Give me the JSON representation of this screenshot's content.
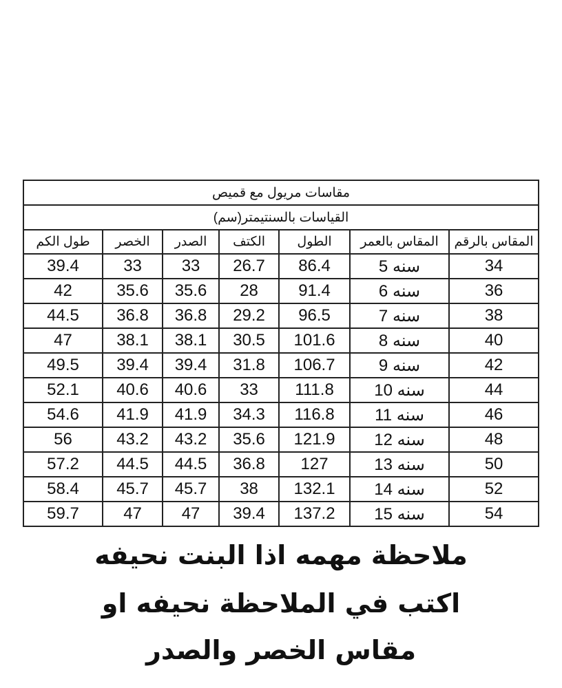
{
  "table": {
    "title": "مقاسات مريول مع قميص",
    "subtitle": "القياسات بالسنتيمتر(سم)",
    "headers": [
      "المقاس بالرقم",
      "المقاس بالعمر",
      "الطول",
      "الكتف",
      "الصدر",
      "الخصر",
      "طول الكم"
    ],
    "rows": [
      [
        "34",
        "سنه 5",
        "86.4",
        "26.7",
        "33",
        "33",
        "39.4"
      ],
      [
        "36",
        "سنه 6",
        "91.4",
        "28",
        "35.6",
        "35.6",
        "42"
      ],
      [
        "38",
        "سنه 7",
        "96.5",
        "29.2",
        "36.8",
        "36.8",
        "44.5"
      ],
      [
        "40",
        "سنه 8",
        "101.6",
        "30.5",
        "38.1",
        "38.1",
        "47"
      ],
      [
        "42",
        "سنه 9",
        "106.7",
        "31.8",
        "39.4",
        "39.4",
        "49.5"
      ],
      [
        "44",
        "سنه 10",
        "111.8",
        "33",
        "40.6",
        "40.6",
        "52.1"
      ],
      [
        "46",
        "سنه 11",
        "116.8",
        "34.3",
        "41.9",
        "41.9",
        "54.6"
      ],
      [
        "48",
        "سنه 12",
        "121.9",
        "35.6",
        "43.2",
        "43.2",
        "56"
      ],
      [
        "50",
        "سنه 13",
        "127",
        "36.8",
        "44.5",
        "44.5",
        "57.2"
      ],
      [
        "52",
        "سنه 14",
        "132.1",
        "38",
        "45.7",
        "45.7",
        "58.4"
      ],
      [
        "54",
        "سنه 15",
        "137.2",
        "39.4",
        "47",
        "47",
        "59.7"
      ]
    ]
  },
  "note": {
    "lines": [
      "ملاحظة مهمه اذا البنت نحيفه",
      "اكتب في الملاحظة نحيفه او",
      "مقاس الخصر والصدر"
    ]
  }
}
